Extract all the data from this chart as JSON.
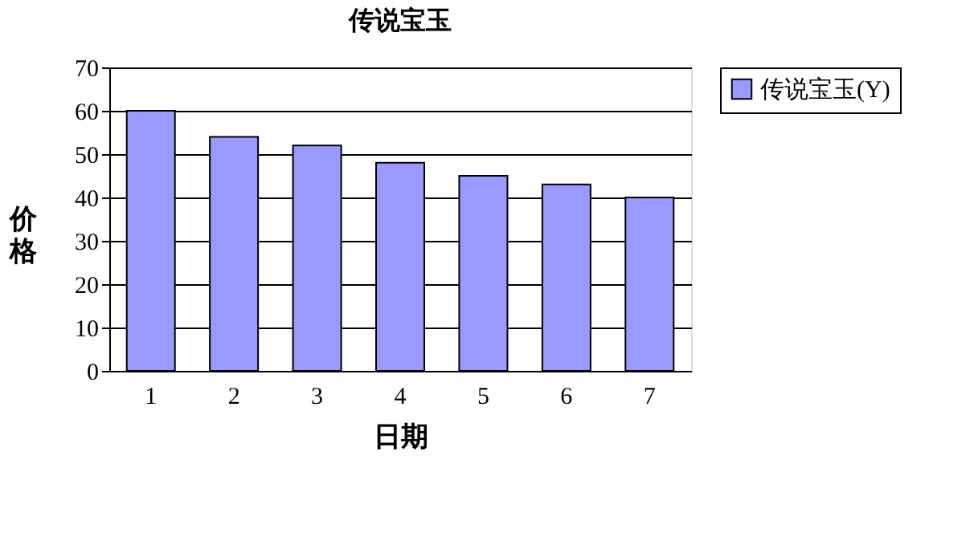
{
  "chart_data": {
    "type": "bar",
    "title": "传说宝玉",
    "xlabel": "日期",
    "ylabel": "价格",
    "categories": [
      "1",
      "2",
      "3",
      "4",
      "5",
      "6",
      "7"
    ],
    "series": [
      {
        "name": "传说宝玉(Y)",
        "color": "#9999ff",
        "values": [
          60,
          54,
          52,
          48,
          45,
          43,
          40
        ]
      }
    ],
    "ylim": [
      0,
      70
    ],
    "yticks": [
      0,
      10,
      20,
      30,
      40,
      50,
      60,
      70
    ],
    "grid": "y",
    "legend": "right"
  }
}
